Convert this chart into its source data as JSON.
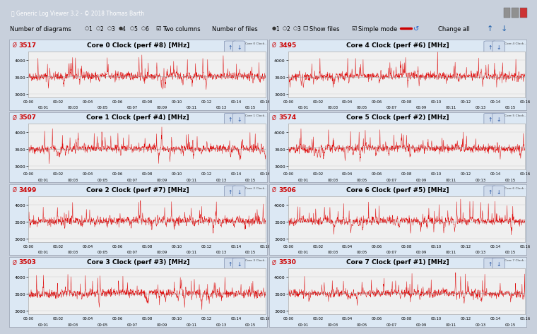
{
  "title_bar": "Generic Log Viewer 3.2 - © 2018 Thomas Barth",
  "panels": [
    {
      "avg": 3517,
      "title": "Core 0 Clock (perf #8) [MHz]",
      "short": "Core 0 Clock (perf #8) [Mh...",
      "row": 0,
      "col": 0
    },
    {
      "avg": 3495,
      "title": "Core 4 Clock (perf #6) [MHz]",
      "short": "Core 4 Clock (perf #6) [Mh...",
      "row": 0,
      "col": 1
    },
    {
      "avg": 3507,
      "title": "Core 1 Clock (perf #4) [MHz]",
      "short": "Core 1 Clock (perf #4) [Mh...",
      "row": 1,
      "col": 0
    },
    {
      "avg": 3574,
      "title": "Core 5 Clock (perf #2) [MHz]",
      "short": "Core 5 Clock (perf #2) [Mh...",
      "row": 1,
      "col": 1
    },
    {
      "avg": 3499,
      "title": "Core 2 Clock (perf #7) [MHz]",
      "short": "Core 2 Clock (perf #7) [Mh...",
      "row": 2,
      "col": 0
    },
    {
      "avg": 3506,
      "title": "Core 6 Clock (perf #5) [MHz]",
      "short": "Core 6 Clock (perf #5) [Mh...",
      "row": 2,
      "col": 1
    },
    {
      "avg": 3503,
      "title": "Core 3 Clock (perf #3) [MHz]",
      "short": "Core 3 Clock (perf #3) [Mh...",
      "row": 3,
      "col": 0
    },
    {
      "avg": 3530,
      "title": "Core 7 Clock (perf #1) [MHz]",
      "short": "Core 7 Clock (perf #1) [Mh...",
      "row": 3,
      "col": 1
    }
  ],
  "ylim": [
    2900,
    4250
  ],
  "yticks": [
    3000,
    3500,
    4000
  ],
  "time_labels_top": [
    "00:00",
    "00:02",
    "00:04",
    "00:06",
    "00:08",
    "00:10",
    "00:12",
    "00:14",
    "00:16"
  ],
  "time_labels_bottom": [
    "00:01",
    "00:03",
    "00:05",
    "00:07",
    "00:09",
    "00:11",
    "00:13",
    "00:15"
  ],
  "n_points": 1000,
  "base_freq": 3500,
  "line_color": "#dd0000",
  "avg_line_color": "#888888",
  "window_bg": "#c8d0dc",
  "titlebar_bg": "#6a8ab0",
  "toolbar_bg": "#dce8f8",
  "panel_header_bg": "#dce8f4",
  "panel_border": "#a0a8b8",
  "plot_bg": "#f0f0f0",
  "plot_border": "#a0a0a0"
}
